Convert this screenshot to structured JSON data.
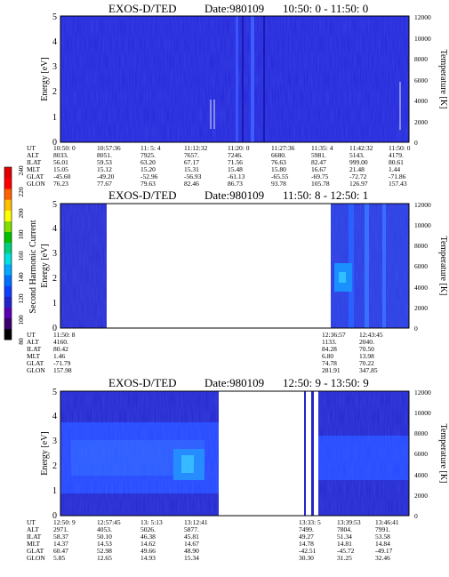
{
  "colorbar": {
    "label": "Second Harmonic Current",
    "ticks": [
      "80",
      "100",
      "120",
      "140",
      "160",
      "180",
      "200",
      "220",
      "240"
    ],
    "colors": [
      "#000000",
      "#3a0070",
      "#5a00b0",
      "#2222cc",
      "#1040ff",
      "#0070ff",
      "#00a8ff",
      "#00e0e0",
      "#00d080",
      "#00c000",
      "#80e000",
      "#ffff00",
      "#ffc000",
      "#ff6000",
      "#ff0000",
      "#e00000"
    ]
  },
  "chart_data": [
    {
      "type": "heatmap",
      "title": "EXOS-D/TED",
      "date_label": "Date:980109",
      "time_range": "10:50: 0 - 11:50: 0",
      "ylabel": "Energy [eV]",
      "ylim": [
        0,
        5
      ],
      "yticks": [
        "0",
        "1",
        "2",
        "3",
        "4",
        "5"
      ],
      "y2label": "Temperature [K]",
      "y2lim": [
        0,
        12000
      ],
      "y2ticks": [
        "0",
        "2000",
        "4000",
        "6000",
        "8000",
        "10000",
        "12000"
      ],
      "orbit_labels": [
        "UT",
        "ALT",
        "ILAT",
        "MLT",
        "GLAT",
        "GLON"
      ],
      "orbit_columns": [
        [
          "10:50: 0",
          "8033.",
          "56.01",
          "15.05",
          "-45.60",
          "76.23"
        ],
        [
          "10:57:36",
          "8051.",
          "59.53",
          "15.12",
          "-49.20",
          "77.67"
        ],
        [
          "11: 5: 4",
          "7925.",
          "63.20",
          "15.20",
          "-52.96",
          "79.63"
        ],
        [
          "11:12:32",
          "7657.",
          "67.17",
          "15.31",
          "-56.93",
          "82.46"
        ],
        [
          "11:20: 0",
          "7246.",
          "71.56",
          "15.48",
          "-61.13",
          "86.73"
        ],
        [
          "11:27:36",
          "6680.",
          "76.63",
          "15.80",
          "-65.55",
          "93.78"
        ],
        [
          "11:35: 4",
          "5981.",
          "82.47",
          "16.67",
          "-69.75",
          "105.78"
        ],
        [
          "11:42:32",
          "5143.",
          "999.00",
          "21.48",
          "-72.72",
          "126.97"
        ],
        [
          "11:50: 0",
          "4179.",
          "80.61",
          "1.44",
          "-71.86",
          "157.43"
        ]
      ]
    },
    {
      "type": "heatmap",
      "title": "EXOS-D/TED",
      "date_label": "Date:980109",
      "time_range": "11:50: 8 - 12:50: 1",
      "ylabel": "Energy [eV]",
      "ylim": [
        0,
        5
      ],
      "yticks": [
        "0",
        "1",
        "2",
        "3",
        "4",
        "5"
      ],
      "y2label": "Temperature [K]",
      "y2lim": [
        0,
        12000
      ],
      "y2ticks": [
        "0",
        "2000",
        "4000",
        "6000",
        "8000",
        "10000",
        "12000"
      ],
      "orbit_labels": [
        "UT",
        "ALT",
        "ILAT",
        "MLT",
        "GLAT",
        "GLON"
      ],
      "orbit_columns": [
        [
          "11:50: 8",
          "4160.",
          "80.42",
          "1.46",
          "-71.79",
          "157.98"
        ],
        [
          "12:36:57",
          "1133.",
          "84.28",
          "6.80",
          "74.78",
          "281.91"
        ],
        [
          "12:43:45",
          "2040.",
          "70.50",
          "13.98",
          "70.22",
          "347.85"
        ]
      ]
    },
    {
      "type": "heatmap",
      "title": "EXOS-D/TED",
      "date_label": "Date:980109",
      "time_range": "12:50: 9 - 13:50: 9",
      "ylabel": "Energy [eV]",
      "ylim": [
        0,
        5
      ],
      "yticks": [
        "0",
        "1",
        "2",
        "3",
        "4",
        "5"
      ],
      "y2label": "Temperature [K]",
      "y2lim": [
        0,
        12000
      ],
      "y2ticks": [
        "0",
        "2000",
        "4000",
        "6000",
        "8000",
        "10000",
        "12000"
      ],
      "orbit_labels": [
        "UT",
        "ALT",
        "ILAT",
        "MLT",
        "GLAT",
        "GLON"
      ],
      "orbit_columns": [
        [
          "12:50: 9",
          "2971.",
          "58.37",
          "14.37",
          "60.47",
          "5.85"
        ],
        [
          "12:57:45",
          "4053.",
          "50.10",
          "14.53",
          "52.98",
          "12.65"
        ],
        [
          "13: 5:13",
          "5026.",
          "46.38",
          "14.62",
          "49.66",
          "14.93"
        ],
        [
          "13:12:41",
          "5877.",
          "45.81",
          "14.67",
          "48.90",
          "15.34"
        ],
        [
          "13:33: 5",
          "7499.",
          "49.27",
          "14.78",
          "-42.51",
          "30.30"
        ],
        [
          "13:39:53",
          "7804.",
          "51.34",
          "14.81",
          "-45.72",
          "31.25"
        ],
        [
          "13:46:41",
          "7991.",
          "53.58",
          "14.84",
          "-49.17",
          "32.46"
        ]
      ]
    }
  ]
}
